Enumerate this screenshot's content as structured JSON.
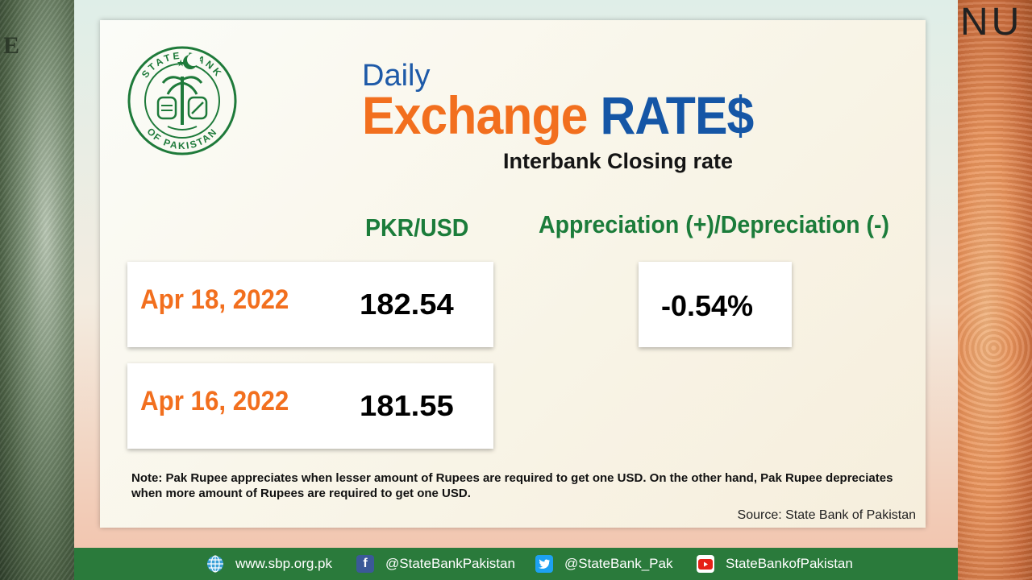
{
  "header": {
    "daily": "Daily",
    "title_orange": "Exchange",
    "title_blue": "RATE$",
    "subtitle": "Interbank Closing rate"
  },
  "logo": {
    "top_text": "STATE BANK",
    "bottom_text": "OF PAKISTAN"
  },
  "columns": {
    "rate": "PKR/USD",
    "change": "Appreciation (+)/Depreciation (-)"
  },
  "rates": [
    {
      "date": "Apr 18, 2022",
      "value": "182.54"
    },
    {
      "date": "Apr 16, 2022",
      "value": "181.55"
    }
  ],
  "change_value": "-0.54%",
  "note": "Note: Pak Rupee appreciates when lesser amount of Rupees are required to get one USD.  On the other hand, Pak Rupee depreciates when more amount of Rupees are required to get one USD.",
  "source": "Source: State Bank of Pakistan",
  "footer": {
    "website": "www.sbp.org.pk",
    "facebook": "@StateBankPakistan",
    "twitter": "@StateBank_Pak",
    "youtube": "StateBankofPakistan"
  },
  "colors": {
    "orange": "#f26f1e",
    "blue": "#1556a6",
    "green": "#1b7c3a",
    "footer_green": "#2a7a3b"
  }
}
